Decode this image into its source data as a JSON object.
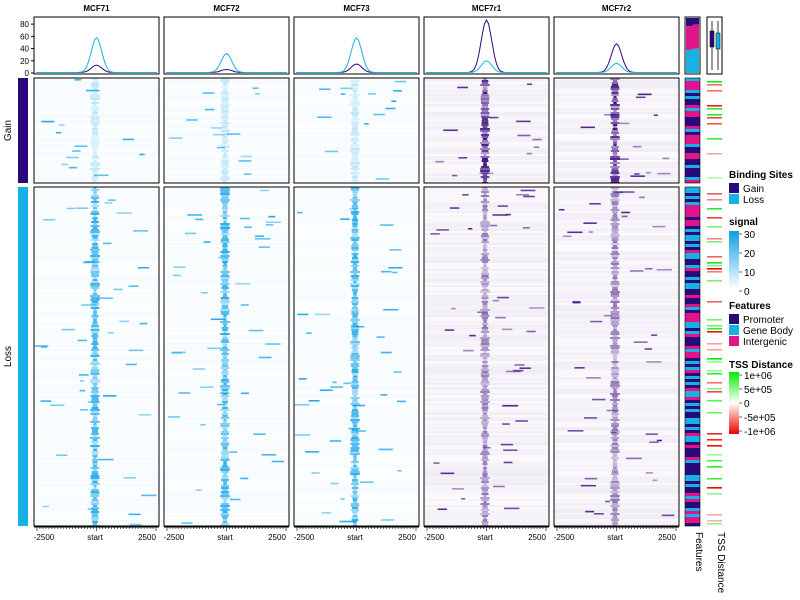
{
  "colors": {
    "gain": "#2a0a7a",
    "loss": "#17b1e4",
    "promoter": "#2a0a7a",
    "gene_body": "#17b1e4",
    "intergenic": "#e0158a",
    "signal_high_light": "#0ba0e6",
    "signal_high_dark": "#3b0a7f",
    "tss_pos": "#00ee00",
    "tss_neg": "#ee0000"
  },
  "chart_data": {
    "type": "heatmap",
    "samples": [
      "MCF71",
      "MCF72",
      "MCF73",
      "MCF7r1",
      "MCF7r2"
    ],
    "sample_palette": [
      "cyan",
      "cyan",
      "cyan",
      "purple",
      "purple"
    ],
    "x_ticks": [
      "-2500",
      "start",
      "2500"
    ],
    "x_range": [
      -2500,
      2500
    ],
    "profile": {
      "y_ticks": [
        "0",
        "20",
        "40",
        "60",
        "80"
      ],
      "ylim": [
        0,
        90
      ],
      "series": [
        {
          "name": "Gain",
          "peaks": [
            12,
            5,
            14,
            86,
            47
          ]
        },
        {
          "name": "Loss",
          "peaks": [
            57,
            31,
            57,
            19,
            15
          ]
        }
      ]
    },
    "groups": [
      {
        "name": "Gain",
        "proportion": 0.235
      },
      {
        "name": "Loss",
        "proportion": 0.765
      }
    ],
    "feature_fraction_boxes": {
      "Gain": {
        "Promoter": 0.15,
        "Gene Body": 0.42,
        "Intergenic": 0.43
      },
      "Loss": {
        "Promoter": 0.12,
        "Gene Body": 0.44,
        "Intergenic": 0.44
      }
    },
    "tss_box": {
      "Gain": [
        0.25,
        0.7
      ],
      "Loss": [
        0.2,
        0.75
      ]
    },
    "annotation_labels": [
      "Features",
      "TSS Distance"
    ],
    "legends": {
      "binding_sites": {
        "title": "Binding Sites",
        "items": [
          "Gain",
          "Loss"
        ]
      },
      "signal": {
        "title": "signal",
        "ticks": [
          "30",
          "20",
          "10",
          "0"
        ],
        "range": [
          0,
          30
        ]
      },
      "features": {
        "title": "Features",
        "items": [
          "Promoter",
          "Gene Body",
          "Intergenic"
        ]
      },
      "tss_distance": {
        "title": "TSS Distance",
        "ticks": [
          "1e+06",
          "5e+05",
          "0",
          "-5e+05",
          "-1e+06"
        ],
        "range": [
          -1000000,
          1000000
        ]
      }
    }
  }
}
